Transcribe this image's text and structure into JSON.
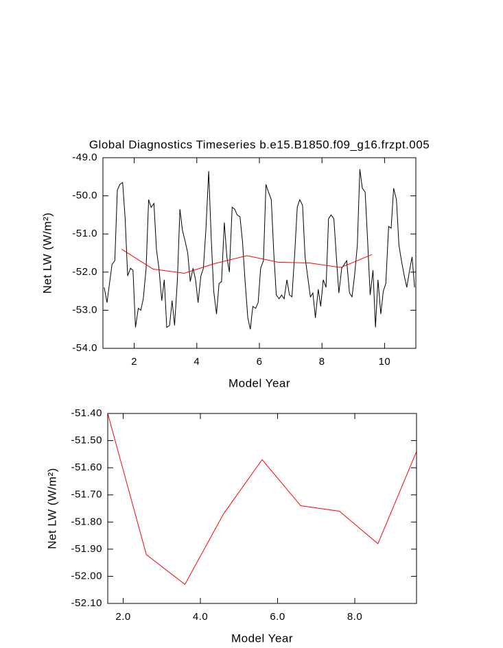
{
  "chart_data": [
    {
      "type": "line",
      "title": "Global Diagnostics Timeseries b.e15.B1850.f09_g16.frzpt.005",
      "xlabel": "Model Year",
      "ylabel": "Net LW (W/m²)",
      "xlim": [
        1,
        11
      ],
      "xticks": [
        2,
        4,
        6,
        8,
        10
      ],
      "ylim": [
        -54,
        -49
      ],
      "yticks": [
        {
          "value": -54,
          "label": "-54.0"
        },
        {
          "value": -53,
          "label": "-53.0"
        },
        {
          "value": -52,
          "label": "-52.0"
        },
        {
          "value": -51,
          "label": "-51.0"
        },
        {
          "value": -50,
          "label": "-50.0"
        },
        {
          "value": -49,
          "label": "-49.0"
        }
      ],
      "series": [
        {
          "color": "#000000",
          "x": [
            1.04,
            1.13,
            1.21,
            1.29,
            1.38,
            1.46,
            1.54,
            1.63,
            1.71,
            1.79,
            1.88,
            1.96,
            2.04,
            2.13,
            2.21,
            2.29,
            2.38,
            2.46,
            2.54,
            2.63,
            2.71,
            2.79,
            2.88,
            2.96,
            3.04,
            3.13,
            3.21,
            3.29,
            3.38,
            3.46,
            3.54,
            3.63,
            3.71,
            3.79,
            3.88,
            3.96,
            4.04,
            4.13,
            4.21,
            4.29,
            4.38,
            4.46,
            4.54,
            4.63,
            4.71,
            4.79,
            4.88,
            4.96,
            5.04,
            5.13,
            5.21,
            5.29,
            5.38,
            5.46,
            5.54,
            5.63,
            5.71,
            5.79,
            5.88,
            5.96,
            6.04,
            6.13,
            6.21,
            6.29,
            6.38,
            6.46,
            6.54,
            6.63,
            6.71,
            6.79,
            6.88,
            6.96,
            7.04,
            7.13,
            7.21,
            7.29,
            7.38,
            7.46,
            7.54,
            7.63,
            7.71,
            7.79,
            7.88,
            7.96,
            8.04,
            8.13,
            8.21,
            8.29,
            8.38,
            8.46,
            8.54,
            8.63,
            8.71,
            8.79,
            8.88,
            8.96,
            9.04,
            9.13,
            9.21,
            9.29,
            9.38,
            9.46,
            9.54,
            9.63,
            9.71,
            9.79,
            9.88,
            9.96,
            10.04,
            10.13,
            10.21,
            10.29,
            10.38,
            10.46,
            10.54,
            10.63,
            10.71,
            10.79,
            10.88,
            10.96
          ],
          "values": [
            -52.4,
            -52.8,
            -52.3,
            -51.8,
            -51.7,
            -49.85,
            -49.7,
            -49.65,
            -50.6,
            -52.1,
            -51.9,
            -51.95,
            -53.45,
            -52.95,
            -53.0,
            -52.7,
            -51.9,
            -50.1,
            -50.3,
            -50.2,
            -51.4,
            -51.9,
            -52.75,
            -52.2,
            -53.45,
            -53.4,
            -52.75,
            -53.4,
            -52.2,
            -50.35,
            -50.9,
            -51.2,
            -51.5,
            -52.25,
            -51.9,
            -52.2,
            -52.8,
            -52.1,
            -51.9,
            -50.9,
            -49.35,
            -51.1,
            -52.5,
            -53.1,
            -52.3,
            -52.25,
            -50.7,
            -51.6,
            -52.0,
            -50.3,
            -50.35,
            -50.5,
            -50.55,
            -51.2,
            -52.2,
            -53.2,
            -53.5,
            -52.9,
            -52.95,
            -52.8,
            -51.9,
            -51.7,
            -49.7,
            -49.9,
            -50.1,
            -51.5,
            -52.6,
            -52.7,
            -52.6,
            -52.7,
            -52.2,
            -52.6,
            -52.65,
            -51.5,
            -50.3,
            -50.1,
            -50.25,
            -51.6,
            -52.1,
            -52.65,
            -52.55,
            -53.2,
            -52.45,
            -52.9,
            -52.2,
            -52.4,
            -50.6,
            -50.5,
            -50.6,
            -51.6,
            -52.55,
            -51.9,
            -51.8,
            -51.7,
            -52.55,
            -52.65,
            -52.1,
            -51.3,
            -49.3,
            -49.8,
            -49.9,
            -51.2,
            -52.6,
            -51.95,
            -53.45,
            -52.2,
            -53.1,
            -52.5,
            -52.3,
            -50.8,
            -50.85,
            -49.8,
            -50.1,
            -51.3,
            -51.7,
            -52.1,
            -52.4,
            -52.0,
            -51.6,
            -52.4
          ]
        },
        {
          "color": "#ff0000",
          "x": [
            1.6,
            2.6,
            3.6,
            4.6,
            5.6,
            6.6,
            7.6,
            8.6,
            9.6
          ],
          "values": [
            -51.4,
            -51.92,
            -52.03,
            -51.77,
            -51.57,
            -51.74,
            -51.76,
            -51.88,
            -51.54
          ]
        }
      ]
    },
    {
      "type": "line",
      "xlabel": "Model Year",
      "ylabel": "Net LW (W/m²)",
      "xlim": [
        1.6,
        9.6
      ],
      "xticks": [
        {
          "value": 2,
          "label": "2.0"
        },
        {
          "value": 4,
          "label": "4.0"
        },
        {
          "value": 6,
          "label": "6.0"
        },
        {
          "value": 8,
          "label": "8.0"
        }
      ],
      "ylim": [
        -52.1,
        -51.4
      ],
      "yticks": [
        {
          "value": -52.1,
          "label": "-52.10"
        },
        {
          "value": -52.0,
          "label": "-52.00"
        },
        {
          "value": -51.9,
          "label": "-51.90"
        },
        {
          "value": -51.8,
          "label": "-51.80"
        },
        {
          "value": -51.7,
          "label": "-51.70"
        },
        {
          "value": -51.6,
          "label": "-51.60"
        },
        {
          "value": -51.5,
          "label": "-51.50"
        },
        {
          "value": -51.4,
          "label": "-51.40"
        }
      ],
      "series": [
        {
          "color": "#ff0000",
          "x": [
            1.6,
            2.6,
            3.6,
            4.6,
            5.6,
            6.6,
            7.6,
            8.6,
            9.6
          ],
          "values": [
            -51.4,
            -51.92,
            -52.03,
            -51.77,
            -51.57,
            -51.74,
            -51.76,
            -51.88,
            -51.54
          ]
        }
      ]
    }
  ]
}
